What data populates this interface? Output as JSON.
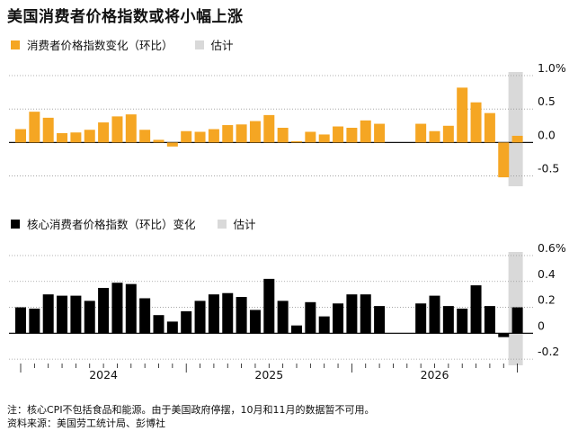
{
  "title": "美国消费者价格指数或将小幅上涨",
  "notes": {
    "note": "注：核心CPI不包括食品和能源。由于美国政府停摆，10月和11月的数据暂不可用。",
    "source": "资料来源：美国劳工统计局、彭博社"
  },
  "colors": {
    "headline": "#f5a623",
    "core": "#000000",
    "estimate_band": "#d9d9d9",
    "grid": "#999999"
  },
  "chart_data": [
    {
      "type": "bar",
      "legend": {
        "series_label": "消费者价格指数变化（环比）",
        "estimate_label": "估计"
      },
      "ylim": [
        -0.6,
        1.0
      ],
      "ytick_values": [
        1.0,
        0.5,
        0.0,
        -0.5
      ],
      "ytick_labels": [
        "1.0%",
        "0.5",
        "0.0",
        "-0.5"
      ],
      "series": [
        {
          "values": [
            0.2,
            0.46,
            0.37,
            0.14,
            0.15,
            0.19,
            0.3,
            0.39,
            0.42,
            0.19,
            0.04,
            -0.06,
            0.17,
            0.16,
            0.2,
            0.26,
            0.27,
            0.32,
            0.41,
            0.22,
            0.02,
            0.16,
            0.12,
            0.24,
            0.22,
            0.33,
            0.28,
            null,
            null,
            0.28,
            0.17,
            0.25,
            0.82,
            0.6,
            0.44,
            -0.52,
            0.1
          ]
        }
      ],
      "estimate_index": 36
    },
    {
      "type": "bar",
      "legend": {
        "series_label": "核心消费者价格指数（环比）变化",
        "estimate_label": "估计"
      },
      "ylim": [
        -0.22,
        0.6
      ],
      "ytick_values": [
        0.6,
        0.4,
        0.2,
        0.0,
        -0.2
      ],
      "ytick_labels": [
        "0.6%",
        "0.4",
        "0.2",
        "0",
        "-0.2"
      ],
      "series": [
        {
          "values": [
            0.2,
            0.19,
            0.3,
            0.29,
            0.29,
            0.25,
            0.35,
            0.39,
            0.38,
            0.27,
            0.14,
            0.09,
            0.17,
            0.25,
            0.3,
            0.31,
            0.28,
            0.18,
            0.42,
            0.25,
            0.06,
            0.24,
            0.13,
            0.23,
            0.3,
            0.3,
            0.21,
            null,
            null,
            0.23,
            0.29,
            0.21,
            0.19,
            0.37,
            0.21,
            -0.03,
            0.2
          ]
        }
      ],
      "estimate_index": 36
    }
  ],
  "x_axis": {
    "start": "2023-01",
    "tick_labels": [
      "2024",
      "2025",
      "2026"
    ]
  }
}
